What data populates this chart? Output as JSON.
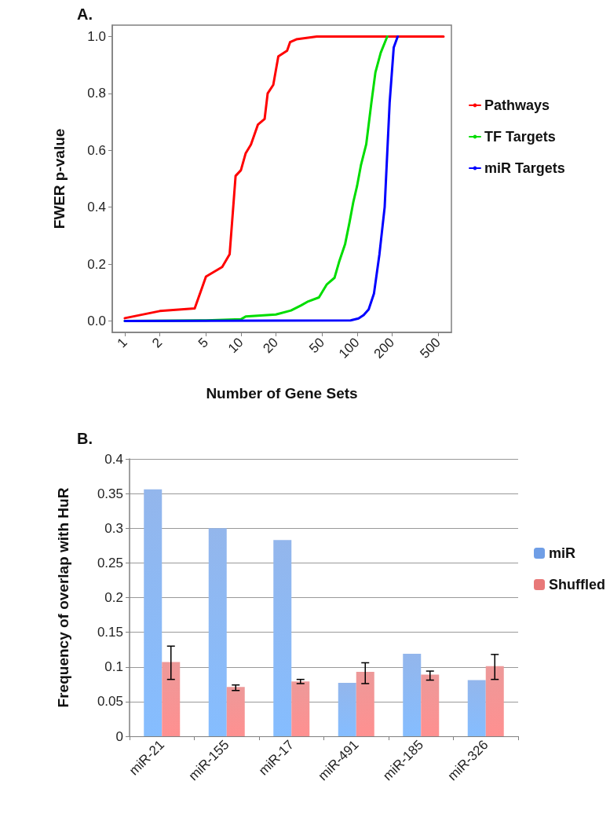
{
  "chart_data": [
    {
      "type": "line",
      "annotations": [
        "A."
      ],
      "xlabel": "Number of Gene Sets",
      "ylabel": "FWER p-value",
      "log": "x",
      "grid": false,
      "legend": "right",
      "marker": "none",
      "line_style": "solid",
      "xlim": [
        0.78,
        650
      ],
      "xticks": [
        1,
        2,
        5,
        10,
        20,
        50,
        100,
        200,
        500
      ],
      "ylim": [
        -0.04,
        1.04
      ],
      "yticks": [
        {
          "value": 0,
          "label": "0.0"
        },
        {
          "value": 0.2,
          "label": "0.2"
        },
        {
          "value": 0.4,
          "label": "0.4"
        },
        {
          "value": 0.6,
          "label": "0.6"
        },
        {
          "value": 0.8,
          "label": "0.8"
        },
        {
          "value": 1,
          "label": "1.0"
        }
      ],
      "series": [
        {
          "name": "Pathways",
          "color": "#ff0000",
          "x": [
            1,
            2,
            4,
            5,
            6.9,
            8,
            9,
            10,
            11,
            12.2,
            14,
            16,
            17,
            19,
            21,
            25,
            26.5,
            30,
            45,
            556
          ],
          "values": [
            0.01,
            0.035,
            0.044,
            0.156,
            0.19,
            0.235,
            0.51,
            0.53,
            0.59,
            0.62,
            0.69,
            0.71,
            0.8,
            0.83,
            0.93,
            0.95,
            0.98,
            0.99,
            1.0,
            1.0
          ]
        },
        {
          "name": "TF Targets",
          "color": "#00dd00",
          "x": [
            1,
            5,
            10,
            11,
            20,
            27,
            33,
            38,
            47,
            55,
            64,
            70,
            79,
            86,
            93,
            100,
            108,
            120,
            133,
            144,
            160,
            182
          ],
          "values": [
            0,
            0.002,
            0.006,
            0.016,
            0.023,
            0.037,
            0.055,
            0.069,
            0.083,
            0.129,
            0.152,
            0.207,
            0.271,
            0.345,
            0.419,
            0.474,
            0.547,
            0.621,
            0.768,
            0.874,
            0.943,
            1.0
          ]
        },
        {
          "name": "miR Targets",
          "color": "#0000ff",
          "x": [
            1,
            88,
            103,
            114,
            126,
            140,
            156,
            173,
            191,
            207,
            224
          ],
          "values": [
            0,
            0.002,
            0.009,
            0.021,
            0.041,
            0.097,
            0.235,
            0.4,
            0.768,
            0.961,
            1.0
          ]
        }
      ]
    },
    {
      "type": "bar",
      "annotations": [
        "B."
      ],
      "ylabel": "Frequency of overlap with HuR",
      "grid": "y",
      "legend": "right",
      "categories": [
        "miR-21",
        "miR-155",
        "miR-17",
        "miR-491",
        "miR-185",
        "miR-326"
      ],
      "ylim": [
        0,
        0.4
      ],
      "yticks": [
        0,
        0.05,
        0.1,
        0.15,
        0.2,
        0.25,
        0.3,
        0.35,
        0.4
      ],
      "series": [
        {
          "name": "miR",
          "color": "#6f9ee6",
          "values": [
            0.356,
            0.3,
            0.283,
            0.077,
            0.119,
            0.081
          ]
        },
        {
          "name": "Shuffled",
          "color": "#e87878",
          "values": [
            0.107,
            0.071,
            0.079,
            0.093,
            0.089,
            0.101
          ],
          "errors": [
            [
              0.082,
              0.13
            ],
            [
              0.066,
              0.074
            ],
            [
              0.076,
              0.082
            ],
            [
              0.076,
              0.106
            ],
            [
              0.081,
              0.094
            ],
            [
              0.082,
              0.118
            ]
          ]
        }
      ]
    }
  ]
}
